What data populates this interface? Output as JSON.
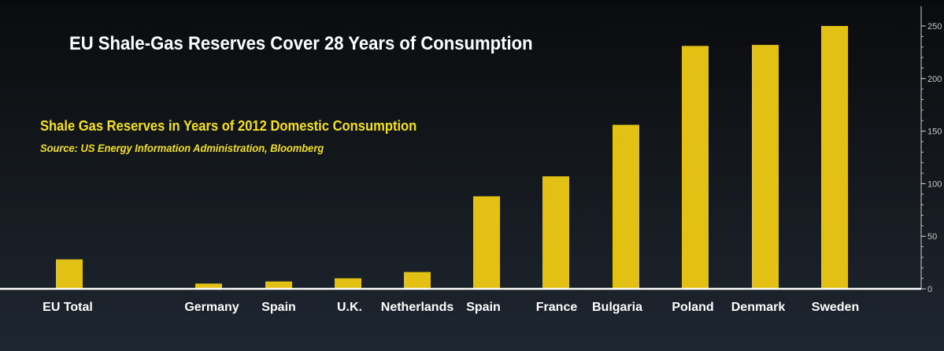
{
  "chart_data": {
    "type": "bar",
    "title": "EU Shale-Gas Reserves Cover 28 Years of Consumption",
    "subtitle": "Shale Gas Reserves in Years of 2012 Domestic Consumption",
    "source": "Source: US Energy Information Administration, Bloomberg",
    "categories": [
      "EU Total",
      "Germany",
      "Spain",
      "U.K.",
      "Netherlands",
      "Spain",
      "France",
      "Bulgaria",
      "Poland",
      "Denmark",
      "Sweden"
    ],
    "values": [
      28,
      5,
      7,
      10,
      16,
      88,
      107,
      156,
      231,
      232,
      250
    ],
    "ylim": [
      0,
      255
    ],
    "yticks": [
      0,
      50,
      100,
      150,
      200,
      250
    ],
    "y_axis_side": "right",
    "grid": false,
    "bar_color": "#e3c114"
  }
}
